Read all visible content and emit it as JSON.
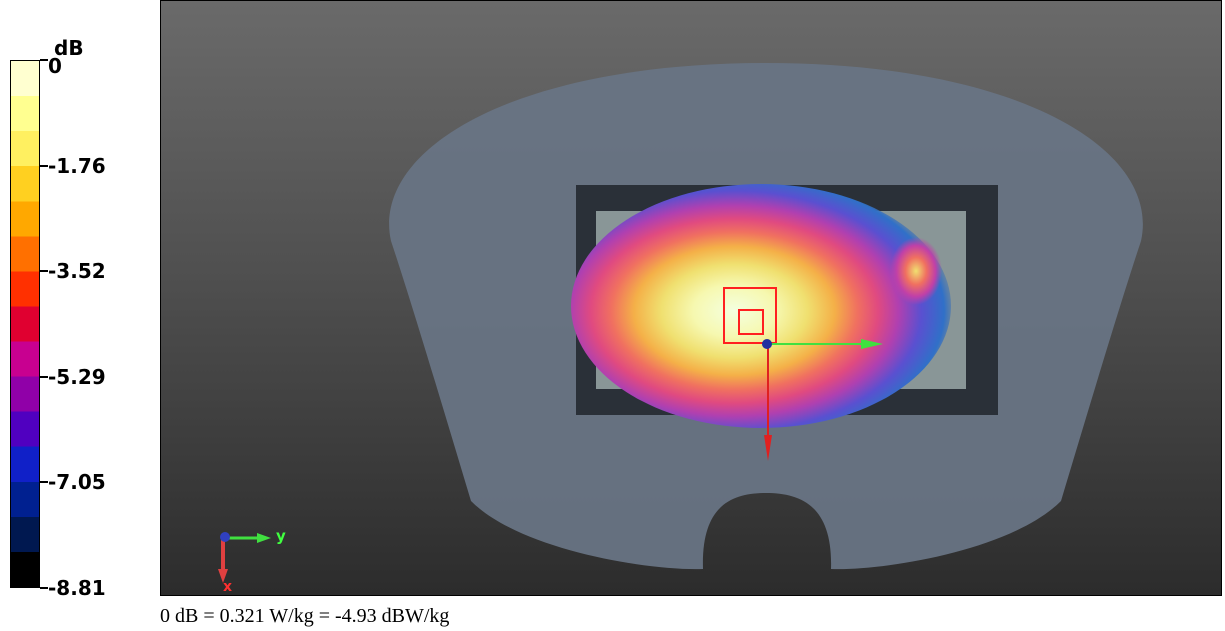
{
  "legend": {
    "unit": "dB",
    "ticks": [
      "0",
      "-1.76",
      "-3.52",
      "-5.29",
      "-7.05",
      "-8.81"
    ],
    "colors": [
      "#ffffd0",
      "#ffff90",
      "#fff060",
      "#ffd020",
      "#ffa800",
      "#ff7000",
      "#ff3000",
      "#e00030",
      "#c80090",
      "#9000a8",
      "#5000c0",
      "#1020c8",
      "#002090",
      "#001850",
      "#000000"
    ]
  },
  "axes_indicator": {
    "y_label": "y",
    "x_label": "x"
  },
  "caption": "0 dB = 0.321 W/kg = -4.93 dBW/kg"
}
